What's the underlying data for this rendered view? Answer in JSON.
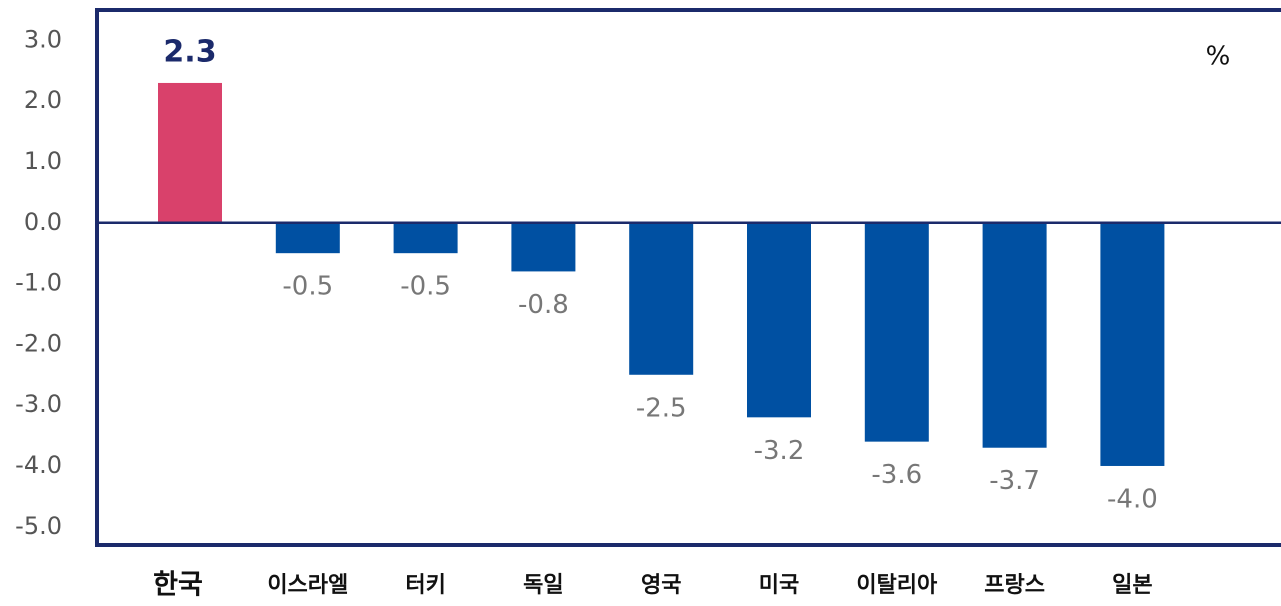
{
  "chart_data": {
    "type": "bar",
    "unit": "%",
    "categories": [
      "한국",
      "이스라엘",
      "터키",
      "독일",
      "영국",
      "미국",
      "이탈리아",
      "프랑스",
      "일본"
    ],
    "values": [
      2.3,
      -0.5,
      -0.5,
      -0.8,
      -2.5,
      -3.2,
      -3.6,
      -3.7,
      -4.0
    ],
    "value_labels": [
      "2.3",
      "-0.5",
      "-0.5",
      "-0.8",
      "-2.5",
      "-3.2",
      "-3.6",
      "-3.7",
      "-4.0"
    ],
    "colors": [
      "#d9416b",
      "#0050a2",
      "#0050a2",
      "#0050a2",
      "#0050a2",
      "#0050a2",
      "#0050a2",
      "#0050a2",
      "#0050a2"
    ],
    "ylim": [
      -5.3,
      3.5
    ],
    "yticks": [
      {
        "value": 3,
        "label": "3.0"
      },
      {
        "value": 2,
        "label": "2.0"
      },
      {
        "value": 1,
        "label": "1.0"
      },
      {
        "value": 0,
        "label": "0.0"
      },
      {
        "value": -1,
        "label": "-1.0"
      },
      {
        "value": -2,
        "label": "-2.0"
      },
      {
        "value": -3,
        "label": "-3.0"
      },
      {
        "value": -4,
        "label": "-4.0"
      },
      {
        "value": -5,
        "label": "-5.0"
      }
    ],
    "grid": false
  }
}
